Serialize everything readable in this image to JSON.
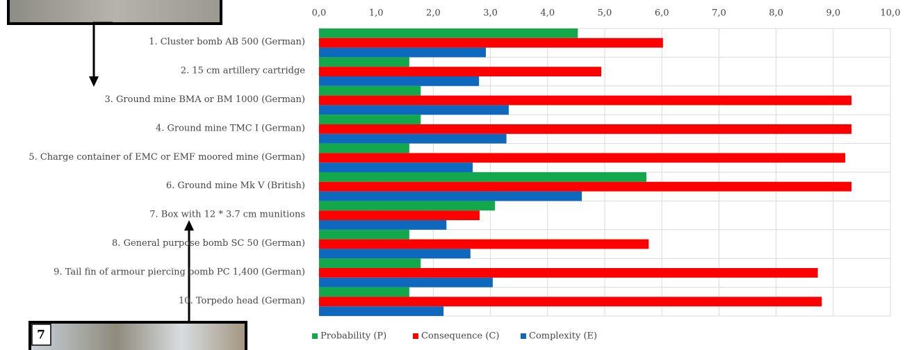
{
  "chart_data": {
    "type": "hbar",
    "categories": [
      "1. Cluster bomb AB 500 (German)",
      "2. 15 cm artillery cartridge",
      "3. Ground mine BMA or BM 1000 (German)",
      "4. Ground mine TMC I (German)",
      "5. Charge container of EMC or EMF moored mine (German)",
      "6. Ground mine Mk V (British)",
      "7. Box with 12 * 3.7 cm munitions",
      "8. General purpose bomb SC 50 (German)",
      "9. Tail fin of armour piercing bomb PC 1,400 (German)",
      "10. Torpedo head (German)"
    ],
    "series": [
      {
        "name": "Probability (P)",
        "color": "#12a84b",
        "values": [
          4.53,
          1.58,
          1.78,
          1.78,
          1.58,
          5.73,
          3.08,
          1.58,
          1.78,
          1.58
        ]
      },
      {
        "name": "Consequence (C)",
        "color": "#fe0000",
        "values": [
          6.02,
          4.94,
          9.32,
          9.32,
          9.21,
          9.32,
          2.81,
          5.77,
          8.73,
          8.8
        ]
      },
      {
        "name": "Complexity (E)",
        "color": "#0d68be",
        "values": [
          2.92,
          2.8,
          3.32,
          3.28,
          2.69,
          4.6,
          2.23,
          2.65,
          3.04,
          2.18
        ]
      }
    ],
    "xlim": [
      0,
      10
    ],
    "xticks": [
      {
        "value": 0,
        "label": "0,0"
      },
      {
        "value": 1,
        "label": "1,0"
      },
      {
        "value": 2,
        "label": "2,0"
      },
      {
        "value": 3,
        "label": "3,0"
      },
      {
        "value": 4,
        "label": "4,0"
      },
      {
        "value": 5,
        "label": "5,0"
      },
      {
        "value": 6,
        "label": "6,0"
      },
      {
        "value": 7,
        "label": "7,0"
      },
      {
        "value": 8,
        "label": "8,0"
      },
      {
        "value": 9,
        "label": "9,0"
      },
      {
        "value": 10,
        "label": "10,0"
      }
    ],
    "grid": true,
    "legend": "bottom",
    "annotations": [
      "7"
    ]
  }
}
